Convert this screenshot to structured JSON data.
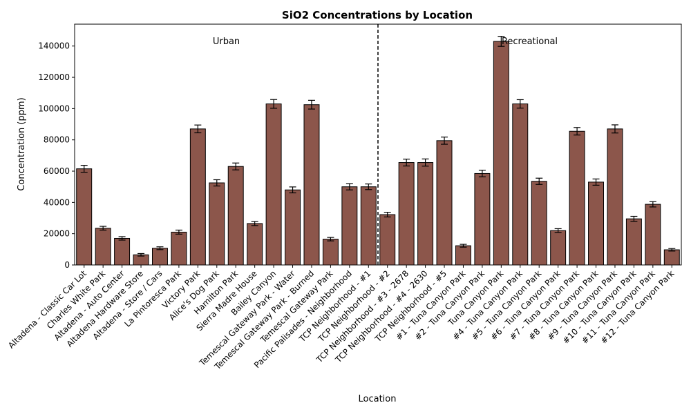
{
  "chart_data": {
    "type": "bar",
    "title": "SiO2 Concentrations by Location",
    "xlabel": "Location",
    "ylabel": "Concentration (ppm)",
    "ylim": [
      0,
      154000
    ],
    "yticks": [
      0,
      20000,
      40000,
      60000,
      80000,
      100000,
      120000,
      140000
    ],
    "bar_color": "#8c564b",
    "edge_color": "#000000",
    "categories": [
      "Altadena - Classic Car Lot",
      "Charles White Park",
      "Altadena - Auto Center",
      "Altadena Hardware Store",
      "Altadena - Store / Cars",
      "La Pintoresca Park",
      "Victory Park",
      "Alice's Dog Park",
      "Hamilton Park",
      "Sierra Madre House",
      "Bailey Canyon",
      "Temescal Gateway Park - Water",
      "Temescal Gateway Park - Burned",
      "Temescal Gateway Park",
      "Pacific Palisades - Neighborhood",
      "TCP Neighborhood - #1",
      "TCP Neighborhood - #2",
      "TCP Neighborhood - #3 - 2678",
      "TCP Neighborhood - #4 - 2630",
      "TCP Neighborhood - #5",
      "#1 - Tuna Canyon Park",
      "#2 - Tuna Canyon Park",
      "Tuna Canyon Park",
      "#4 - Tuna Canyon Park",
      "#5 - Tuna Canyon Park",
      "#6 - Tuna Canyon Park",
      "#7 - Tuna Canyon Park",
      "#8 - Tuna Canyon Park",
      "#9 - Tuna Canyon Park",
      "#10 - Tuna Canyon Park",
      "#11 - Tuna Canyon Park",
      "#12 - Tuna Canyon Park"
    ],
    "values": [
      61500,
      23500,
      17000,
      6500,
      10700,
      21000,
      87000,
      52500,
      63000,
      26500,
      103000,
      48000,
      102500,
      16500,
      50000,
      50000,
      32200,
      65500,
      65500,
      79500,
      12300,
      58500,
      143000,
      103000,
      53500,
      22000,
      85500,
      53000,
      87000,
      29500,
      38800,
      9700
    ],
    "errors": [
      2200,
      1200,
      1100,
      800,
      900,
      1300,
      2500,
      2000,
      2200,
      1300,
      2800,
      1900,
      2800,
      1100,
      2000,
      1800,
      1500,
      2200,
      2300,
      2300,
      900,
      2100,
      3200,
      2700,
      2000,
      1200,
      2400,
      2000,
      2600,
      1600,
      1700,
      800
    ],
    "divider": {
      "after_index": 15,
      "style": "dashed"
    },
    "group_labels": [
      {
        "text": "Urban",
        "category_index": 7.5
      },
      {
        "text": "Recreational",
        "category_index": 23.5
      }
    ]
  }
}
